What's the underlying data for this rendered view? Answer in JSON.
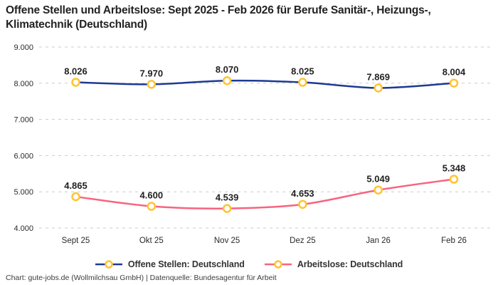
{
  "title": "Offene Stellen und Arbeitslose: Sept 2025 - Feb 2026 für Berufe Sanitär-, Heizungs-, Klimatechnik (Deutschland)",
  "footer": "Chart: gute-jobs.de (Wollmilchsau GmbH) | Datenquelle: Bundesagentur für Arbeit",
  "colors": {
    "open_positions_line": "#1e3a93",
    "unemployed_line": "#f8647e",
    "marker_stroke": "#ffc42e",
    "marker_fill": "#ffffff",
    "gridline": "#cccccc",
    "label_text": "#222222",
    "tick_text": "#2a2a2a"
  },
  "chart_data": {
    "type": "line",
    "categories": [
      "Sept 25",
      "Okt 25",
      "Nov 25",
      "Dez 25",
      "Jan 26",
      "Feb 26"
    ],
    "series": [
      {
        "name": "Offene Stellen: Deutschland",
        "values": [
          8026,
          7970,
          8070,
          8025,
          7869,
          8004
        ],
        "labels": [
          "8.026",
          "7.970",
          "8.070",
          "8.025",
          "7.869",
          "8.004"
        ],
        "color": "#1e3a93"
      },
      {
        "name": "Arbeitslose: Deutschland",
        "values": [
          4865,
          4600,
          4539,
          4653,
          5049,
          5348
        ],
        "labels": [
          "4.865",
          "4.600",
          "4.539",
          "4.653",
          "5.049",
          "5.348"
        ],
        "color": "#f8647e"
      }
    ],
    "title": "Offene Stellen und Arbeitslose: Sept 2025 - Feb 2026 für Berufe Sanitär-, Heizungs-, Klimatechnik (Deutschland)",
    "xlabel": "",
    "ylabel": "",
    "ylim": [
      4000,
      9000
    ],
    "ytick_step": 1000,
    "ytick_labels": [
      "4.000",
      "5.000",
      "6.000",
      "7.000",
      "8.000",
      "9.000"
    ],
    "grid": "dashed-horizontal",
    "legend_position": "bottom-center",
    "marker": "circle-yellow-stroke-white-fill"
  }
}
